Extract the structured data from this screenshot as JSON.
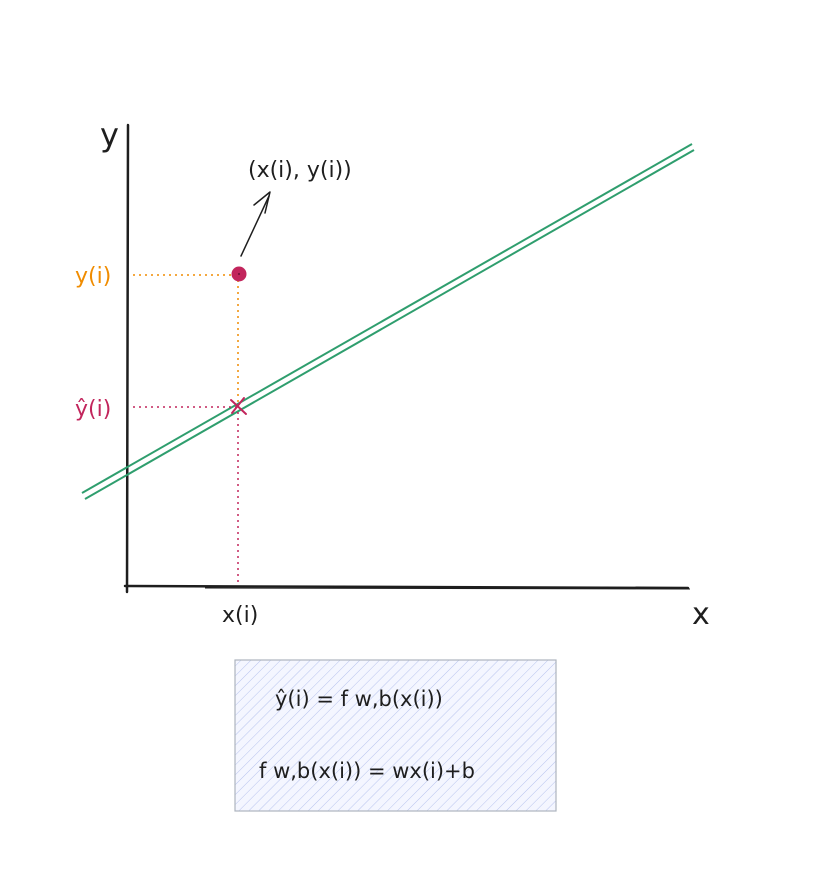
{
  "axes": {
    "y_label": "y",
    "x_label": "x"
  },
  "point": {
    "label": "(x(i), y(i))"
  },
  "ticks": {
    "y_actual": "y(i)",
    "y_pred": "ŷ(i)",
    "x": "x(i)"
  },
  "formula_box": {
    "line1": "ŷ(i) = f w,b(x(i))",
    "line2": "f w,b(x(i)) = wx(i)+b"
  },
  "colors": {
    "axis": "#1e1e1e",
    "regression_line": "#2f9e6e",
    "data_point": "#c2255c",
    "y_actual": "#f08c00",
    "y_pred": "#c2255c",
    "box_fill": "#dbe4ff",
    "box_stroke": "#adb5bd"
  }
}
